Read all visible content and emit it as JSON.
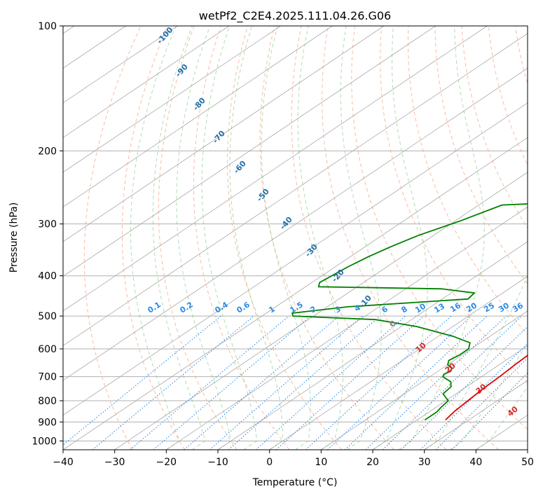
{
  "chart_data": {
    "type": "line",
    "title": "wetPf2_C2E4.2025.111.04.26.G06",
    "xlabel": "Temperature (°C)",
    "ylabel": "Pressure (hPa)",
    "xlim": [
      -40,
      50
    ],
    "ylim": [
      1050,
      100
    ],
    "y_scale": "log",
    "grid": true,
    "x_ticks": [
      "−40",
      "−30",
      "−20",
      "−10",
      "0",
      "10",
      "20",
      "30",
      "40",
      "50"
    ],
    "y_ticks": [
      "100",
      "200",
      "300",
      "400",
      "500",
      "600",
      "700",
      "800",
      "900",
      "1000"
    ],
    "colors": {
      "temperature": "#e00000",
      "dewpoint": "#008000",
      "dry_adiabat": "#f4a582",
      "moist_adiabat": "#6fbf6f",
      "mixing_ratio": "#2a8ae6",
      "isotherm": "#808080"
    },
    "series": [
      {
        "color": "#e00000",
        "points": [
          [
            25.5,
            890
          ],
          [
            24.8,
            850
          ],
          [
            24.3,
            800
          ],
          [
            23.8,
            750
          ],
          [
            23.5,
            700
          ],
          [
            23.0,
            650
          ],
          [
            22.8,
            620
          ],
          [
            22.5,
            590
          ],
          [
            22.0,
            550
          ],
          [
            21.5,
            500
          ],
          [
            21.0,
            470
          ],
          [
            19.5,
            440
          ],
          [
            19.0,
            425
          ],
          [
            20.0,
            420
          ],
          [
            21.5,
            410
          ],
          [
            19.0,
            390
          ],
          [
            16.0,
            370
          ],
          [
            15.0,
            355
          ],
          [
            14.0,
            330
          ],
          [
            14.0,
            310
          ],
          [
            13.0,
            290
          ],
          [
            10.5,
            270
          ],
          [
            9.0,
            252
          ],
          [
            7.5,
            240
          ],
          [
            7.0,
            225
          ],
          [
            5.5,
            205
          ],
          [
            4.0,
            185
          ],
          [
            2.5,
            170
          ],
          [
            2.0,
            160
          ],
          [
            1.5,
            150
          ],
          [
            0.5,
            140
          ],
          [
            -0.5,
            130
          ],
          [
            -1.5,
            125
          ],
          [
            -2.5,
            120
          ],
          [
            -2.0,
            115
          ],
          [
            0.0,
            110
          ],
          [
            2.5,
            104
          ],
          [
            3.3,
            100
          ]
        ]
      },
      {
        "color": "#008000",
        "points": [
          [
            21.5,
            890
          ],
          [
            21.5,
            850
          ],
          [
            21.0,
            830
          ],
          [
            20.5,
            800
          ],
          [
            17.5,
            770
          ],
          [
            17.0,
            740
          ],
          [
            15.5,
            720
          ],
          [
            12.5,
            700
          ],
          [
            12.0,
            690
          ],
          [
            12.5,
            680
          ],
          [
            12.0,
            670
          ],
          [
            10.0,
            655
          ],
          [
            9.0,
            640
          ],
          [
            9.5,
            620
          ],
          [
            9.5,
            600
          ],
          [
            8.0,
            580
          ],
          [
            3.0,
            560
          ],
          [
            -7.0,
            530
          ],
          [
            -17.0,
            510
          ],
          [
            -34.0,
            500
          ],
          [
            -35.0,
            492
          ],
          [
            -26.0,
            475
          ],
          [
            -5.0,
            455
          ],
          [
            -5.5,
            440
          ],
          [
            -13.0,
            430
          ],
          [
            -37.5,
            425
          ],
          [
            -38.5,
            415
          ],
          [
            -37.5,
            380
          ],
          [
            -36.5,
            360
          ],
          [
            -35.0,
            340
          ],
          [
            -33.0,
            320
          ],
          [
            -29.0,
            295
          ],
          [
            -25.5,
            270
          ],
          [
            -11.0,
            265
          ],
          [
            -4.0,
            258
          ],
          [
            -3.5,
            250
          ],
          [
            -4.5,
            245
          ],
          [
            -3.5,
            232
          ],
          [
            0.5,
            220
          ],
          [
            1.5,
            205
          ],
          [
            0.5,
            190
          ],
          [
            -1.0,
            180
          ],
          [
            -1.5,
            165
          ],
          [
            0.0,
            155
          ],
          [
            -0.5,
            145
          ],
          [
            -1.5,
            135
          ],
          [
            -2.5,
            125
          ],
          [
            -2.5,
            118
          ],
          [
            -1.0,
            112
          ],
          [
            -0.5,
            106
          ],
          [
            0.0,
            100
          ]
        ]
      }
    ],
    "dry_adiabat_labels": [
      "0",
      "10",
      "20",
      "30",
      "40"
    ],
    "moist_adiabat_labels": [
      "-100",
      "-90",
      "-80",
      "-70",
      "-60",
      "-50",
      "-40",
      "-30",
      "-20",
      "-10"
    ],
    "mixing_ratio_labels": [
      "0.1",
      "0.2",
      "0.4",
      "0.6",
      "1",
      "1.5",
      "2",
      "3",
      "4",
      "6",
      "8",
      "10",
      "13",
      "16",
      "20",
      "25",
      "30",
      "36"
    ]
  }
}
